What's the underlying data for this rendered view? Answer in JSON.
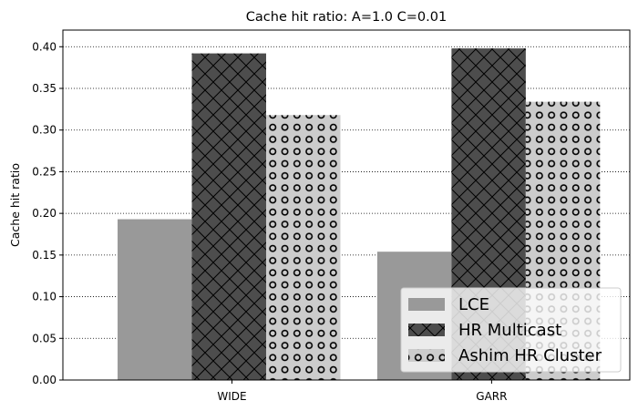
{
  "chart_data": {
    "type": "bar",
    "title": "Cache hit ratio: A=1.0 C=0.01",
    "xlabel": "",
    "ylabel": "Cache hit ratio",
    "categories": [
      "WIDE",
      "GARR"
    ],
    "series": [
      {
        "name": "LCE",
        "values": [
          0.193,
          0.154
        ],
        "color": "#999999",
        "pattern": "none"
      },
      {
        "name": "HR Multicast",
        "values": [
          0.392,
          0.398
        ],
        "color": "#4d4d4d",
        "pattern": "crosshatch"
      },
      {
        "name": "Ashim HR Cluster",
        "values": [
          0.318,
          0.334
        ],
        "color": "#cccccc",
        "pattern": "circles"
      }
    ],
    "ylim": [
      0,
      0.42
    ],
    "yticks": [
      "0.00",
      "0.05",
      "0.10",
      "0.15",
      "0.20",
      "0.25",
      "0.30",
      "0.35",
      "0.40"
    ],
    "grid": "horizontal-dotted",
    "legend_position": "bottom-right"
  }
}
